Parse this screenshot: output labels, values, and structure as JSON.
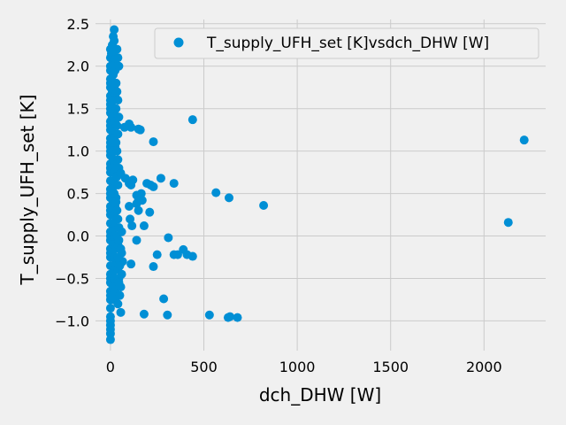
{
  "chart_data": {
    "type": "scatter",
    "xlabel": "dch_DHW [W]",
    "ylabel": "T_supply_UFH_set [K]",
    "xlim": [
      -80,
      2330
    ],
    "ylim": [
      -1.35,
      2.55
    ],
    "xticks": [
      0,
      500,
      1000,
      1500,
      2000
    ],
    "yticks": [
      -1.0,
      -0.5,
      0.0,
      0.5,
      1.0,
      1.5,
      2.0,
      2.5
    ],
    "xtick_labels": [
      "0",
      "500",
      "1000",
      "1500",
      "2000"
    ],
    "ytick_labels": [
      "−1.0",
      "−0.5",
      "0.0",
      "0.5",
      "1.0",
      "1.5",
      "2.0",
      "2.5"
    ],
    "grid": true,
    "legend_position": "top-right",
    "marker_color": "#008fd5",
    "series": [
      {
        "name": "T_supply_UFH_set [K]vsdch_DHW [W]",
        "x": [
          0,
          0,
          0,
          0,
          0,
          0,
          0,
          0,
          0,
          0,
          0,
          0,
          0,
          0,
          0,
          0,
          0,
          0,
          0,
          0,
          0,
          0,
          0,
          0,
          0,
          0,
          0,
          0,
          0,
          0,
          0,
          0,
          0,
          0,
          0,
          0,
          0,
          0,
          0,
          0,
          0,
          0,
          0,
          0,
          0,
          0,
          0,
          0,
          0,
          0,
          0,
          15,
          20,
          10,
          25,
          5,
          30,
          20,
          10,
          25,
          15,
          5,
          30,
          20,
          10,
          25,
          15,
          5,
          30,
          20,
          10,
          25,
          15,
          5,
          30,
          20,
          10,
          25,
          15,
          5,
          20,
          15,
          25,
          10,
          20,
          30,
          15,
          25,
          10,
          20,
          30,
          15,
          25,
          10,
          20,
          30,
          15,
          25,
          10,
          20,
          30,
          15,
          25,
          10,
          20,
          30,
          15,
          25,
          10,
          20,
          30,
          15,
          25,
          10,
          20,
          35,
          40,
          45,
          30,
          35,
          40,
          45,
          35,
          40,
          30,
          35,
          40,
          45,
          35,
          40,
          30,
          35,
          40,
          45,
          35,
          40,
          40,
          50,
          60,
          45,
          55,
          50,
          65,
          40,
          55,
          60,
          45,
          50,
          40,
          55,
          45,
          60,
          100,
          110,
          150,
          160,
          75,
          230,
          55,
          80,
          100,
          110,
          120,
          140,
          150,
          165,
          195,
          215,
          230,
          270,
          340,
          100,
          105,
          115,
          140,
          150,
          170,
          180,
          210,
          250,
          310,
          340,
          360,
          390,
          410,
          440,
          110,
          140,
          180,
          230,
          285,
          305,
          530,
          630,
          640,
          680,
          440,
          565,
          635,
          820,
          2130,
          2215
        ],
        "y": [
          2.2,
          2.1,
          2.0,
          1.95,
          1.85,
          1.75,
          1.65,
          1.55,
          1.45,
          1.35,
          1.25,
          1.15,
          1.05,
          0.95,
          0.85,
          0.75,
          0.65,
          0.55,
          0.45,
          0.35,
          0.25,
          0.15,
          0.05,
          -0.05,
          -0.15,
          -0.25,
          -0.35,
          -0.45,
          -0.55,
          -0.65,
          -0.75,
          -0.85,
          -0.95,
          -1.05,
          -1.15,
          -1.22,
          1.5,
          1.0,
          0.5,
          0.0,
          -0.5,
          -1.0,
          1.8,
          1.3,
          0.8,
          0.3,
          -0.2,
          -0.7,
          -1.1,
          1.6,
          1.1,
          2.35,
          2.3,
          2.25,
          2.2,
          2.15,
          2.1,
          2.05,
          2.0,
          1.95,
          1.9,
          1.85,
          1.8,
          1.75,
          1.7,
          1.65,
          1.6,
          1.55,
          1.5,
          1.45,
          1.4,
          1.35,
          1.3,
          1.25,
          1.2,
          1.15,
          1.1,
          1.05,
          1.0,
          0.95,
          2.43,
          0.9,
          0.85,
          0.8,
          0.75,
          0.7,
          0.65,
          0.6,
          0.55,
          0.5,
          0.45,
          0.4,
          0.35,
          0.3,
          0.25,
          0.2,
          0.15,
          0.1,
          0.05,
          0.0,
          -0.05,
          -0.1,
          -0.15,
          -0.2,
          -0.25,
          -0.3,
          -0.35,
          -0.4,
          -0.45,
          -0.5,
          -0.55,
          -0.6,
          -0.65,
          -0.7,
          -0.75,
          2.2,
          2.1,
          2.0,
          1.8,
          1.7,
          1.6,
          1.4,
          1.3,
          1.2,
          1.1,
          1.0,
          0.9,
          0.8,
          0.7,
          0.6,
          0.4,
          0.3,
          0.2,
          0.1,
          0.0,
          -0.1,
          -0.4,
          -0.3,
          -0.2,
          -0.5,
          -0.6,
          -0.7,
          -0.3,
          -0.8,
          -0.9,
          -0.45,
          -0.55,
          -0.35,
          -0.25,
          -0.15,
          -0.05,
          0.05,
          1.32,
          1.28,
          1.26,
          1.25,
          1.28,
          1.11,
          0.74,
          0.68,
          0.62,
          0.6,
          0.66,
          0.48,
          0.42,
          0.5,
          0.62,
          0.6,
          0.58,
          0.68,
          0.62,
          0.35,
          0.2,
          0.12,
          0.38,
          0.3,
          0.42,
          0.12,
          0.28,
          -0.22,
          -0.02,
          -0.22,
          -0.22,
          -0.16,
          -0.22,
          -0.24,
          -0.33,
          -0.05,
          -0.92,
          -0.36,
          -0.74,
          -0.93,
          -0.93,
          -0.96,
          -0.95,
          -0.96,
          1.37,
          0.51,
          0.45,
          0.36,
          0.16,
          1.13
        ]
      }
    ]
  }
}
